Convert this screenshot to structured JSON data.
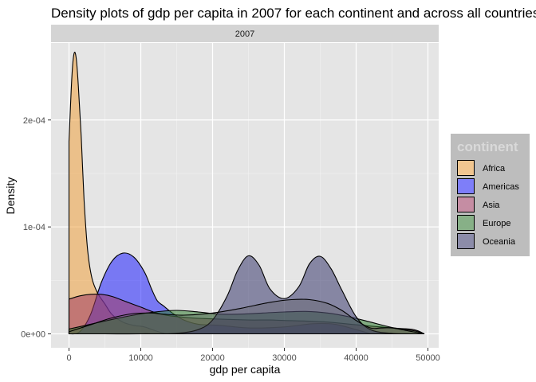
{
  "chart_data": {
    "type": "area",
    "title": "Density plots of  gdp per capita in 2007 for each continent and across all countries",
    "facet_label": "2007",
    "xlabel": "gdp per capita",
    "ylabel": "Density",
    "xlim": [
      -2500,
      51500
    ],
    "ylim": [
      -1.3e-05,
      0.000272
    ],
    "x_ticks": [
      0,
      10000,
      20000,
      30000,
      40000,
      50000
    ],
    "x_tick_labels": [
      "0",
      "10000",
      "20000",
      "30000",
      "40000",
      "50000"
    ],
    "y_ticks": [
      0,
      0.0001,
      0.0002
    ],
    "y_tick_labels": [
      "0e+00",
      "1e-04",
      "2e-04"
    ],
    "grid": true,
    "legend": {
      "title": "continent",
      "placement": "right",
      "entries": [
        "Africa",
        "Americas",
        "Asia",
        "Europe",
        "Oceania"
      ]
    },
    "colors": {
      "Africa": "#f1a340",
      "Americas": "#1f1fff",
      "Asia": "#a03a63",
      "Europe": "#2f7a2f",
      "Oceania": "#39386e",
      "panel_bg": "#e5e5e5",
      "strip_bg": "#d4d4d4",
      "legend_bg": "#bdbdbd"
    },
    "series": [
      {
        "name": "Africa",
        "x": [
          0,
          400,
          700,
          1000,
          1300,
          1700,
          2100,
          2600,
          3200,
          4000,
          5000,
          6000,
          7500,
          9000,
          10500,
          12000,
          13500
        ],
        "y": [
          0.00018,
          0.00024,
          0.000262,
          0.000258,
          0.000232,
          0.000185,
          0.000125,
          7.8e-05,
          5.2e-05,
          3.8e-05,
          2.8e-05,
          1.8e-05,
          1.1e-05,
          8e-06,
          6.5e-06,
          3e-06,
          0
        ]
      },
      {
        "name": "Americas",
        "x": [
          0,
          1500,
          3000,
          4500,
          6000,
          7500,
          9000,
          10500,
          11500,
          12300,
          13200,
          14500,
          16000,
          18000,
          21000,
          25000,
          30000,
          34000,
          37000,
          40000,
          42000
        ],
        "y": [
          0,
          2e-06,
          1.8e-05,
          4.8e-05,
          6.8e-05,
          7.55e-05,
          7.2e-05,
          5.8e-05,
          4.2e-05,
          3.1e-05,
          2.6e-05,
          1.9e-05,
          1.3e-05,
          9e-06,
          8e-06,
          5.5e-06,
          6.5e-06,
          9.5e-06,
          9e-06,
          4e-06,
          0
        ]
      },
      {
        "name": "Asia",
        "x": [
          0,
          1500,
          3000,
          4500,
          6000,
          8000,
          10000,
          12000,
          14000,
          17000,
          20000,
          25000,
          28000,
          30000,
          33000,
          36000,
          40000,
          45000,
          48000,
          49500
        ],
        "y": [
          3.25e-05,
          3.55e-05,
          3.7e-05,
          3.7e-05,
          3.5e-05,
          3e-05,
          2.5e-05,
          2e-05,
          1.7e-05,
          1.5e-05,
          1.4e-05,
          1.3e-05,
          1.3e-05,
          1.25e-05,
          1.2e-05,
          1.1e-05,
          8.5e-06,
          5.5e-06,
          4e-06,
          0
        ]
      },
      {
        "name": "Europe",
        "x": [
          0,
          3000,
          6000,
          9000,
          12000,
          15000,
          18000,
          21000,
          24000,
          27000,
          30000,
          33000,
          36000,
          39000,
          42000,
          45000,
          48000,
          49500
        ],
        "y": [
          4.5e-06,
          9e-06,
          1.35e-05,
          1.75e-05,
          2.05e-05,
          2.2e-05,
          2.05e-05,
          1.85e-05,
          1.85e-05,
          1.95e-05,
          2.05e-05,
          2.1e-05,
          1.95e-05,
          1.6e-05,
          1.1e-05,
          6e-06,
          3e-06,
          0
        ]
      },
      {
        "name": "Oceania",
        "x": [
          0,
          5000,
          10000,
          15000,
          18000,
          20000,
          22000,
          23500,
          25000,
          26500,
          28000,
          30000,
          32000,
          33500,
          35000,
          36500,
          38000,
          40000,
          42000,
          45000,
          49500
        ],
        "y": [
          0,
          0,
          0,
          5e-07,
          4e-06,
          1.3e-05,
          3.5e-05,
          5.95e-05,
          7.3e-05,
          6.4e-05,
          4.2e-05,
          3.3e-05,
          4.4e-05,
          6.55e-05,
          7.25e-05,
          6.1e-05,
          4.1e-05,
          1.6e-05,
          4e-06,
          5e-07,
          0
        ]
      },
      {
        "name": "",
        "x": [
          0,
          3000,
          6000,
          9000,
          11500,
          13000,
          16000,
          20000,
          24000,
          28000,
          31000,
          33500,
          36000,
          38000,
          40000,
          42000,
          43500,
          45000,
          47500,
          49500
        ],
        "y": [
          2e-06,
          8.5e-06,
          1.5e-05,
          1.9e-05,
          1.95e-05,
          1.85e-05,
          1.75e-05,
          1.95e-05,
          2.4e-05,
          2.95e-05,
          3.2e-05,
          3.2e-05,
          2.85e-05,
          2.2e-05,
          1.25e-05,
          5.5e-06,
          5.5e-06,
          5.5e-06,
          2.5e-06,
          0
        ]
      }
    ]
  }
}
